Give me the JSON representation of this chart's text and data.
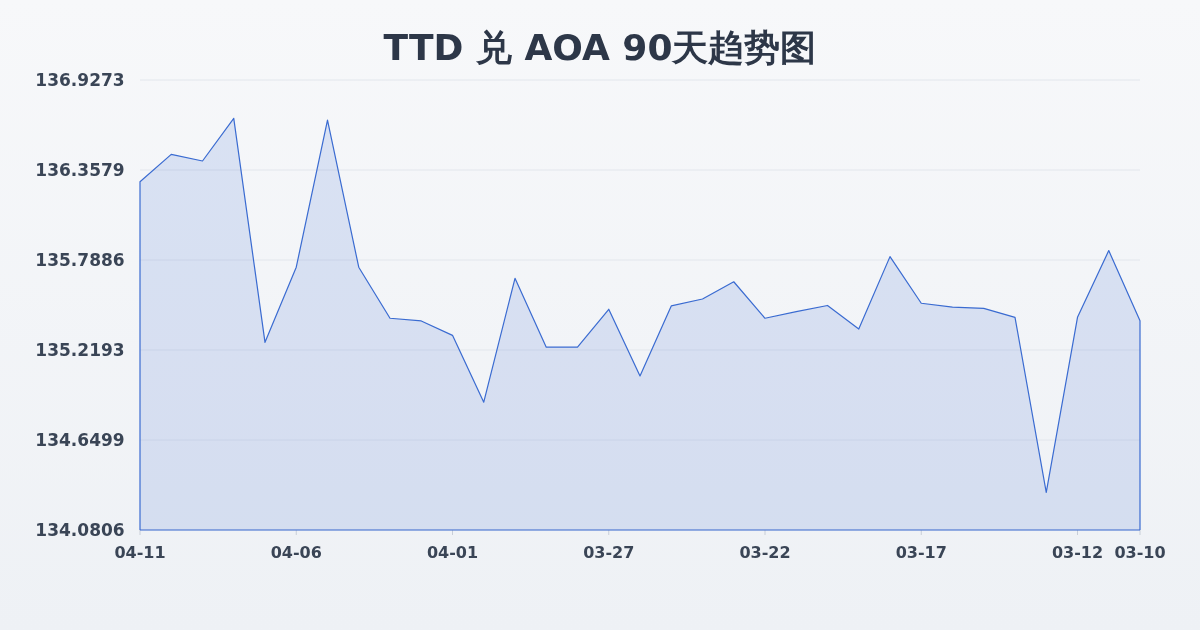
{
  "chart_data": {
    "type": "area",
    "title": "TTD 兑 AOA 90天趋势图",
    "categories": [
      "04-11",
      null,
      null,
      null,
      null,
      "04-06",
      null,
      null,
      null,
      null,
      "04-01",
      null,
      null,
      null,
      null,
      "03-27",
      null,
      null,
      null,
      null,
      "03-22",
      null,
      null,
      null,
      null,
      "03-17",
      null,
      null,
      null,
      null,
      "03-12",
      null,
      "03-10"
    ],
    "series": [
      {
        "color": "#3a6bd1",
        "values": [
          136.284,
          136.457,
          136.415,
          136.685,
          135.268,
          135.743,
          136.674,
          135.743,
          135.42,
          135.403,
          135.312,
          134.889,
          135.673,
          135.237,
          135.237,
          135.477,
          135.055,
          135.498,
          135.542,
          135.651,
          135.42,
          135.462,
          135.501,
          135.352,
          135.81,
          135.515,
          135.49,
          135.483,
          135.426,
          134.319,
          135.426,
          135.848,
          135.405
        ]
      }
    ],
    "ylim": [
      134.0806,
      136.9273
    ],
    "yticks": [
      134.0806,
      134.6499,
      135.2193,
      135.7886,
      136.3579,
      136.9273
    ],
    "grid": "y"
  }
}
